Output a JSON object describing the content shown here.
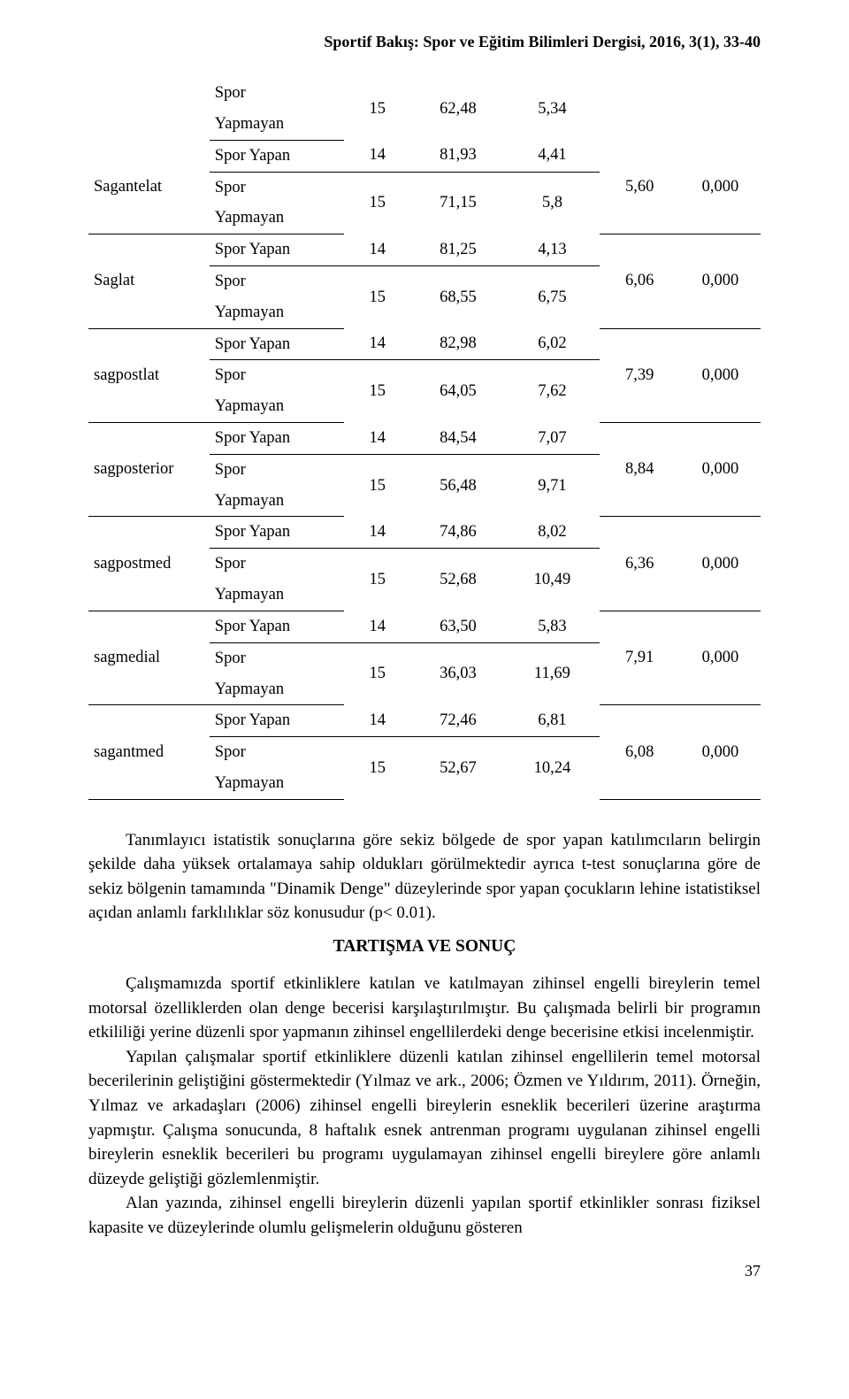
{
  "journal_header": "Sportif Bakış: Spor ve Eğitim Bilimleri Dergisi, 2016, 3(1), 33-40",
  "table": {
    "label_yapan": "Spor Yapan",
    "label_yapmayan_line1": "Spor",
    "label_yapmayan_line2": "Yapmayan",
    "groups": [
      {
        "name": "",
        "yapan": null,
        "yapmayan": {
          "n": "15",
          "mean": "62,48",
          "sd": "5,34"
        },
        "t": "",
        "p": ""
      },
      {
        "name": "Sagantelat",
        "yapan": {
          "n": "14",
          "mean": "81,93",
          "sd": "4,41"
        },
        "yapmayan": {
          "n": "15",
          "mean": "71,15",
          "sd": "5,8"
        },
        "t": "5,60",
        "p": "0,000"
      },
      {
        "name": "Saglat",
        "yapan": {
          "n": "14",
          "mean": "81,25",
          "sd": "4,13"
        },
        "yapmayan": {
          "n": "15",
          "mean": "68,55",
          "sd": "6,75"
        },
        "t": "6,06",
        "p": "0,000"
      },
      {
        "name": "sagpostlat",
        "yapan": {
          "n": "14",
          "mean": "82,98",
          "sd": "6,02"
        },
        "yapmayan": {
          "n": "15",
          "mean": "64,05",
          "sd": "7,62"
        },
        "t": "7,39",
        "p": "0,000"
      },
      {
        "name": "sagposterior",
        "yapan": {
          "n": "14",
          "mean": "84,54",
          "sd": "7,07"
        },
        "yapmayan": {
          "n": "15",
          "mean": "56,48",
          "sd": "9,71"
        },
        "t": "8,84",
        "p": "0,000"
      },
      {
        "name": "sagpostmed",
        "yapan": {
          "n": "14",
          "mean": "74,86",
          "sd": "8,02"
        },
        "yapmayan": {
          "n": "15",
          "mean": "52,68",
          "sd": "10,49"
        },
        "t": "6,36",
        "p": "0,000"
      },
      {
        "name": "sagmedial",
        "yapan": {
          "n": "14",
          "mean": "63,50",
          "sd": "5,83"
        },
        "yapmayan": {
          "n": "15",
          "mean": "36,03",
          "sd": "11,69"
        },
        "t": "7,91",
        "p": "0,000"
      },
      {
        "name": "sagantmed",
        "yapan": {
          "n": "14",
          "mean": "72,46",
          "sd": "6,81"
        },
        "yapmayan": {
          "n": "15",
          "mean": "52,67",
          "sd": "10,24"
        },
        "t": "6,08",
        "p": "0,000"
      }
    ]
  },
  "paragraphs": {
    "p1": "Tanımlayıcı istatistik sonuçlarına göre sekiz bölgede de spor yapan katılımcıların belirgin şekilde daha yüksek ortalamaya sahip oldukları görülmektedir ayrıca t-test sonuçlarına göre de sekiz bölgenin tamamında \"Dinamik Denge\" düzeylerinde spor yapan çocukların lehine istatistiksel açıdan anlamlı farklılıklar söz konusudur (p< 0.01).",
    "section_title": "TARTIŞMA VE SONUÇ",
    "p2": "Çalışmamızda sportif etkinliklere katılan ve katılmayan zihinsel engelli bireylerin temel motorsal özelliklerden olan denge becerisi karşılaştırılmıştır. Bu çalışmada belirli bir programın etkililiği yerine düzenli spor yapmanın zihinsel engellilerdeki denge becerisine etkisi incelenmiştir.",
    "p3": "Yapılan çalışmalar sportif etkinliklere düzenli katılan zihinsel engellilerin temel motorsal becerilerinin geliştiğini göstermektedir (Yılmaz ve ark., 2006; Özmen ve Yıldırım, 2011). Örneğin, Yılmaz ve arkadaşları (2006) zihinsel engelli bireylerin esneklik becerileri üzerine araştırma yapmıştır. Çalışma sonucunda, 8 haftalık esnek antrenman programı uygulanan zihinsel engelli bireylerin esneklik becerileri bu programı uygulamayan zihinsel engelli bireylere göre anlamlı düzeyde geliştiği gözlemlenmiştir.",
    "p4": "Alan yazında, zihinsel engelli bireylerin düzenli yapılan sportif etkinlikler sonrası fiziksel kapasite ve düzeylerinde olumlu gelişmelerin olduğunu gösteren"
  },
  "page_number": "37"
}
